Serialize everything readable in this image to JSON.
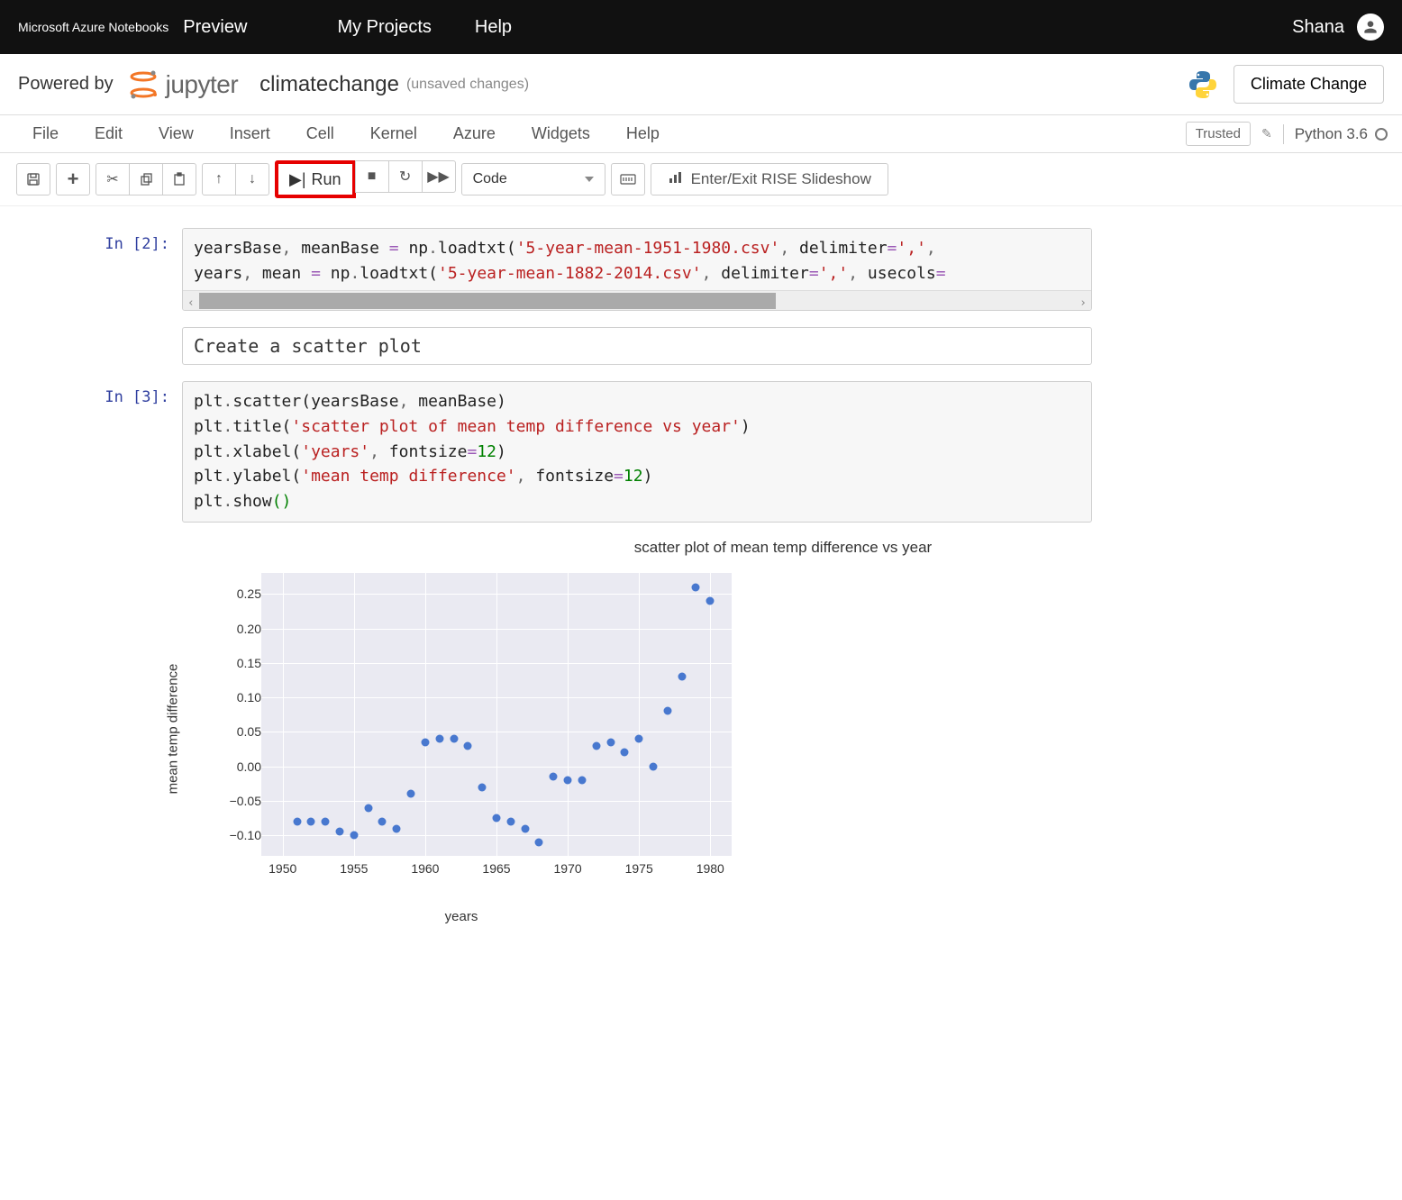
{
  "topbar": {
    "brand": "Microsoft Azure Notebooks",
    "preview": "Preview",
    "nav": [
      "My Projects",
      "Help"
    ],
    "user": "Shana"
  },
  "header": {
    "powered": "Powered by",
    "jupyter_text": "jupyter",
    "nb_name": "climatechange",
    "nb_status": "(unsaved changes)",
    "context_btn": "Climate Change"
  },
  "menubar": {
    "items": [
      "File",
      "Edit",
      "View",
      "Insert",
      "Cell",
      "Kernel",
      "Azure",
      "Widgets",
      "Help"
    ],
    "trusted": "Trusted",
    "kernel": "Python 3.6"
  },
  "toolbar": {
    "run_label": "Run",
    "celltype": "Code",
    "rise_label": "Enter/Exit RISE Slideshow"
  },
  "cells": [
    {
      "prompt": "In [2]:",
      "code_html": "<span class='tok-id'>yearsBase</span><span class='tok-op'>, </span><span class='tok-id'>meanBase</span> <span class='tok-eq'>=</span> <span class='tok-id'>np</span><span class='tok-op'>.</span><span class='tok-id'>loadtxt</span><span class='tok-paren'>(</span><span class='tok-str'>'5-year-mean-1951-1980.csv'</span><span class='tok-op'>, </span><span class='tok-id'>delimiter</span><span class='tok-eq'>=</span><span class='tok-str'>','</span><span class='tok-op'>,</span>\n<span class='tok-id'>years</span><span class='tok-op'>, </span><span class='tok-id'>mean</span> <span class='tok-eq'>=</span> <span class='tok-id'>np</span><span class='tok-op'>.</span><span class='tok-id'>loadtxt</span><span class='tok-paren'>(</span><span class='tok-str'>'5-year-mean-1882-2014.csv'</span><span class='tok-op'>, </span><span class='tok-id'>delimiter</span><span class='tok-eq'>=</span><span class='tok-str'>','</span><span class='tok-op'>, </span><span class='tok-id'>usecols</span><span class='tok-eq'>=</span>",
      "has_hscroll": true
    },
    {
      "prompt": "",
      "plain": "Create a scatter plot"
    },
    {
      "prompt": "In [3]:",
      "code_html": "<span class='tok-id'>plt</span><span class='tok-op'>.</span><span class='tok-id'>scatter</span><span class='tok-paren'>(</span><span class='tok-id'>yearsBase</span><span class='tok-op'>, </span><span class='tok-id'>meanBase</span><span class='tok-paren'>)</span>\n<span class='tok-id'>plt</span><span class='tok-op'>.</span><span class='tok-id'>title</span><span class='tok-paren'>(</span><span class='tok-str'>'scatter plot of mean temp difference vs year'</span><span class='tok-paren'>)</span>\n<span class='tok-id'>plt</span><span class='tok-op'>.</span><span class='tok-id'>xlabel</span><span class='tok-paren'>(</span><span class='tok-str'>'years'</span><span class='tok-op'>, </span><span class='tok-id'>fontsize</span><span class='tok-eq'>=</span><span class='tok-num'>12</span><span class='tok-paren'>)</span>\n<span class='tok-id'>plt</span><span class='tok-op'>.</span><span class='tok-id'>ylabel</span><span class='tok-paren'>(</span><span class='tok-str'>'mean temp difference'</span><span class='tok-op'>, </span><span class='tok-id'>fontsize</span><span class='tok-eq'>=</span><span class='tok-num'>12</span><span class='tok-paren'>)</span>\n<span class='tok-id'>plt</span><span class='tok-op'>.</span><span class='tok-id'>show</span><span class='tok-paren' style='color:#008000'>()</span>"
    }
  ],
  "chart": {
    "title": "scatter plot of mean temp difference vs year",
    "xlabel": "years",
    "ylabel": "mean temp difference",
    "xlim": [
      1948.5,
      1981.5
    ],
    "ylim": [
      -0.13,
      0.28
    ],
    "xticks": [
      1950,
      1955,
      1960,
      1965,
      1970,
      1975,
      1980
    ],
    "yticks": [
      -0.1,
      -0.05,
      0.0,
      0.05,
      0.1,
      0.15,
      0.2,
      0.25
    ],
    "ytick_labels": [
      "−0.10",
      "−0.05",
      "0.00",
      "0.05",
      "0.10",
      "0.15",
      "0.20",
      "0.25"
    ],
    "point_color": "#4878cf",
    "background_color": "#eaeaf2",
    "grid_color": "#ffffff",
    "data": [
      [
        1951,
        -0.08
      ],
      [
        1952,
        -0.08
      ],
      [
        1953,
        -0.08
      ],
      [
        1954,
        -0.095
      ],
      [
        1955,
        -0.1
      ],
      [
        1956,
        -0.06
      ],
      [
        1957,
        -0.08
      ],
      [
        1958,
        -0.09
      ],
      [
        1959,
        -0.04
      ],
      [
        1960,
        0.035
      ],
      [
        1961,
        0.04
      ],
      [
        1962,
        0.04
      ],
      [
        1963,
        0.03
      ],
      [
        1964,
        -0.03
      ],
      [
        1965,
        -0.075
      ],
      [
        1966,
        -0.08
      ],
      [
        1967,
        -0.09
      ],
      [
        1968,
        -0.11
      ],
      [
        1969,
        -0.015
      ],
      [
        1970,
        -0.02
      ],
      [
        1971,
        -0.02
      ],
      [
        1972,
        0.03
      ],
      [
        1973,
        0.035
      ],
      [
        1974,
        0.02
      ],
      [
        1975,
        0.04
      ],
      [
        1976,
        0.0
      ],
      [
        1977,
        0.08
      ],
      [
        1978,
        0.13
      ],
      [
        1979,
        0.26
      ],
      [
        1980,
        0.24
      ]
    ]
  }
}
